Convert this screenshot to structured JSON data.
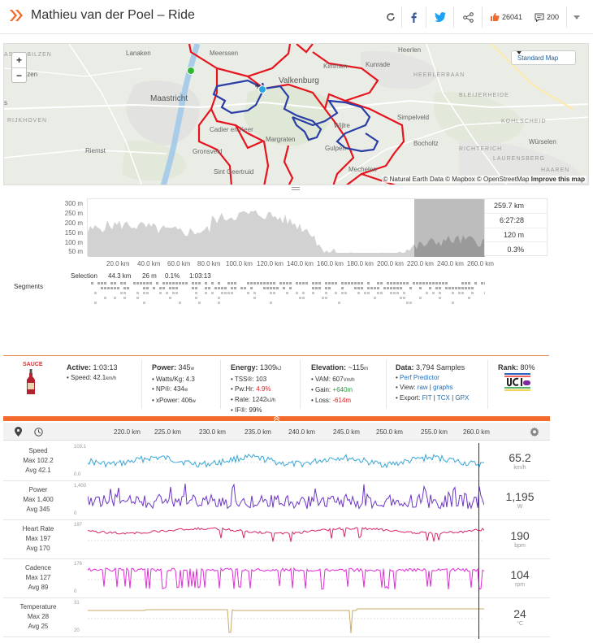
{
  "header": {
    "title": "Mathieu van der Poel – Ride",
    "kudos_count": "26041",
    "comments_count": "200"
  },
  "map": {
    "style_button": "Standard Map",
    "attribution": "© Natural Earth Data © Mapbox © OpenStreetMap",
    "improve_link": "Improve this map",
    "labels": {
      "asterbilzen": "ASTERBILZEN",
      "lanaken": "Lanaken",
      "meerssen": "Meerssen",
      "heerlen": "Heerlen",
      "kunrade": "Kunrade",
      "kimmen": "Kimmen",
      "heerlerbaan": "HEERLERBAAN",
      "izen": "Izen",
      "valkenburg": "Valkenburg",
      "maastricht": "Maastricht",
      "bleijerheide": "BLEIJERHEIDE",
      "rijkhoven": "RIJKHOVEN",
      "cadier": "Cadier en Keer",
      "simpelveld": "Simpelveld",
      "kohlscheid": "KOHLSCHEID",
      "wijlre": "Wijlre",
      "margraten": "Margraten",
      "riemst": "Riemst",
      "gronsveld": "Gronsveld",
      "gulpen": "Gulpen",
      "bocholtz": "Bocholtz",
      "richterich": "RICHTERICH",
      "wurselen": "Würselen",
      "laurensberg": "LAURENSBERG",
      "sintgeertruid": "Sint Geertruid",
      "mechelen": "Mechelen",
      "haaren": "HAAREN",
      "s": "s"
    }
  },
  "elevation": {
    "y_ticks": [
      "300 m",
      "250 m",
      "200 m",
      "150 m",
      "100 m",
      "50 m"
    ],
    "x_ticks": [
      "20.0 km",
      "40.0 km",
      "60.0 km",
      "80.0 km",
      "100.0 km",
      "120.0 km",
      "140.0 km",
      "160.0 km",
      "180.0 km",
      "200.0 km",
      "220.0 km",
      "240.0 km",
      "260.0 km"
    ],
    "stats": [
      "259.7 km",
      "6:27:28",
      "120 m",
      "0.3%"
    ],
    "selection": {
      "label": "Selection",
      "distance": "44.3 km",
      "elevation": "26 m",
      "grade": "0.1%",
      "time": "1:03:13"
    },
    "segments_label": "Segments"
  },
  "stats": {
    "sauce_label": "SAUCE",
    "active": {
      "title": "Active:",
      "value": "1:03:13",
      "speed_label": "Speed:",
      "speed_value": "42.1",
      "speed_unit": "km/h"
    },
    "power": {
      "title": "Power:",
      "value": "345",
      "unit": "w",
      "wkg_label": "Watts/Kg:",
      "wkg_value": "4.3",
      "np_label": "NP®:",
      "np_value": "434",
      "np_unit": "w",
      "xp_label": "xPower:",
      "xp_value": "406",
      "xp_unit": "w"
    },
    "energy": {
      "title": "Energy:",
      "value": "1309",
      "unit": "kJ",
      "tss_label": "TSS®:",
      "tss_value": "103",
      "pwhr_label": "Pw:Hr:",
      "pwhr_value": "4.9%",
      "rate_label": "Rate:",
      "rate_value": "1242",
      "rate_unit": "kJ/h",
      "if_label": "IF®:",
      "if_value": "99%"
    },
    "elevation": {
      "title": "Elevation:",
      "value": "~115",
      "unit": "m",
      "vam_label": "VAM:",
      "vam_value": "607",
      "vam_unit": "Vm/h",
      "gain_label": "Gain:",
      "gain_value": "+640m",
      "loss_label": "Loss:",
      "loss_value": "-614m"
    },
    "data": {
      "title": "Data:",
      "value": "3,794 Samples",
      "perf_link": "Perf Predictor",
      "view_label": "View:",
      "view_raw": "raw",
      "view_graphs": "graphs",
      "export_label": "Export:",
      "export_fit": "FIT",
      "export_tcx": "TCX",
      "export_gpx": "GPX"
    },
    "rank": {
      "title": "Rank:",
      "value": "80%"
    }
  },
  "timeline": {
    "x_ticks": [
      "220.0 km",
      "225.0 km",
      "230.0 km",
      "235.0 km",
      "240.0 km",
      "245.0 km",
      "250.0 km",
      "255.0 km",
      "260.0 km"
    ]
  },
  "rows": [
    {
      "name": "Speed",
      "max": "Max 102.2",
      "avg": "Avg 42.1",
      "ymax": "103.1",
      "ymin": "0.0",
      "value": "65.2",
      "unit": "km/h",
      "color": "#35a7d8"
    },
    {
      "name": "Power",
      "max": "Max 1,400",
      "avg": "Avg 345",
      "ymax": "1,400",
      "ymin": "0",
      "value": "1,195",
      "unit": "W",
      "color": "#6b34c9"
    },
    {
      "name": "Heart Rate",
      "max": "Max 197",
      "avg": "Avg 170",
      "ymax": "197",
      "ymin": "",
      "value": "190",
      "unit": "bpm",
      "color": "#d8266b"
    },
    {
      "name": "Cadence",
      "max": "Max 127",
      "avg": "Avg 89",
      "ymax": "176",
      "ymin": "0",
      "value": "104",
      "unit": "rpm",
      "color": "#e22bd9"
    },
    {
      "name": "Temperature",
      "max": "Max 28",
      "avg": "Avg 25",
      "ymax": "31",
      "ymin": "20",
      "value": "24",
      "unit": "°C",
      "color": "#c8a96a"
    }
  ]
}
